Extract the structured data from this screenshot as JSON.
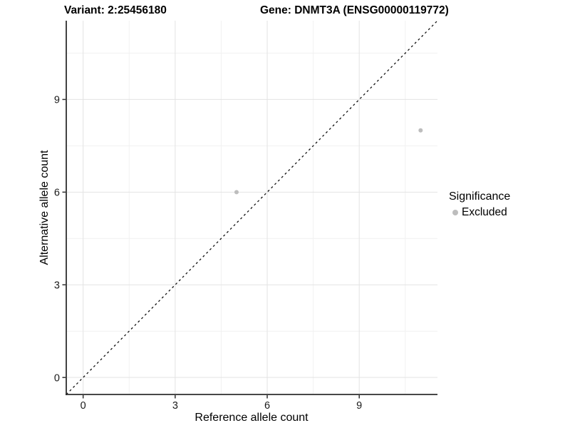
{
  "header": {
    "variant_title": "Variant: 2:25456180",
    "gene_title": "Gene: DNMT3A (ENSG00000119772)"
  },
  "chart_data": {
    "type": "scatter",
    "xlabel": "Reference allele count",
    "ylabel": "Alternative allele count",
    "x_ticks": [
      0,
      3,
      6,
      9
    ],
    "y_ticks": [
      0,
      3,
      6,
      9
    ],
    "x_minor_ticks": [
      1.5,
      4.5,
      7.5,
      10.5
    ],
    "y_minor_ticks": [
      1.5,
      4.5,
      7.5,
      10.5
    ],
    "xlim": [
      -0.55,
      11.55
    ],
    "ylim": [
      -0.55,
      11.55
    ],
    "grid": true,
    "series": [
      {
        "name": "Excluded",
        "color": "#bdbdbd",
        "point_radius": 3,
        "points": [
          [
            5,
            6
          ],
          [
            11,
            8
          ]
        ]
      }
    ],
    "identity_line": {
      "style": "dashed",
      "color": "#111111",
      "from": [
        -0.55,
        -0.55
      ],
      "to": [
        11.55,
        11.55
      ]
    },
    "legend": {
      "title": "Significance",
      "position": "right",
      "entries": [
        {
          "label": "Excluded",
          "color": "#bdbdbd"
        }
      ]
    }
  }
}
